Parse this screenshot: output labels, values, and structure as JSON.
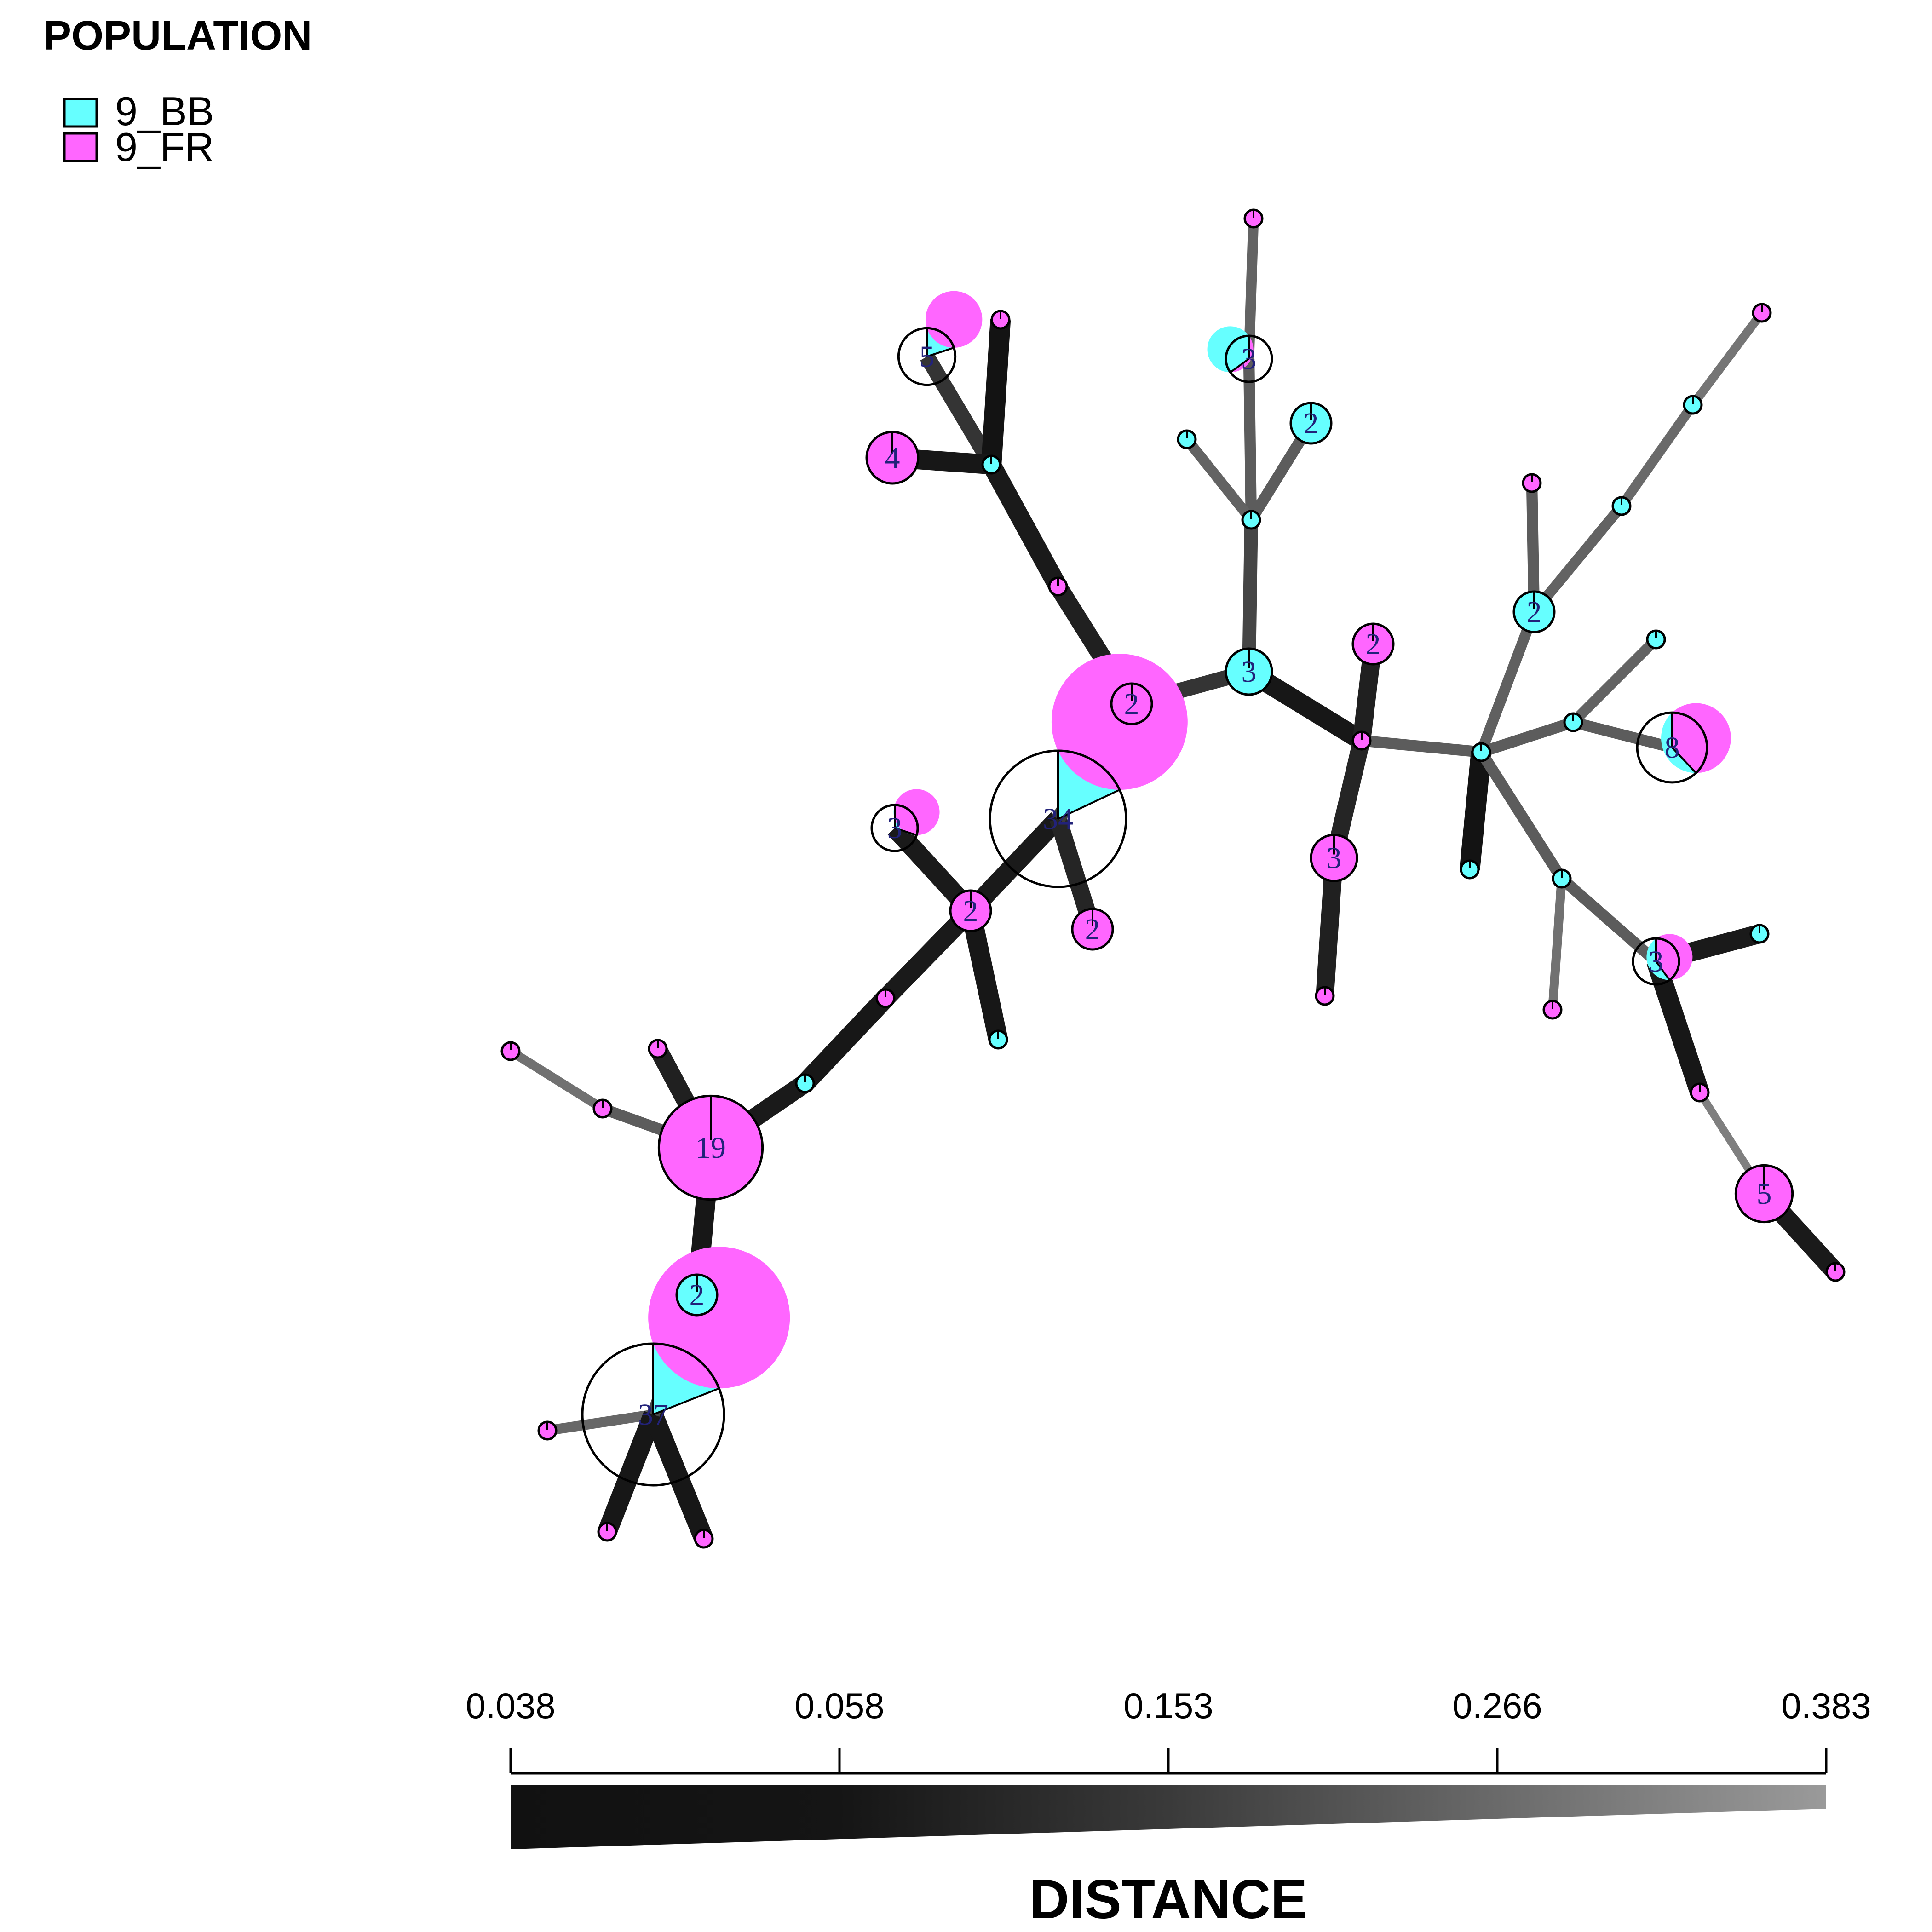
{
  "legend": {
    "title": "POPULATION",
    "items": [
      {
        "label": "9_BB",
        "color": "#66FFFF"
      },
      {
        "label": "9_FR",
        "color": "#FF66FF"
      }
    ]
  },
  "distance_scale": {
    "title": "DISTANCE",
    "ticks": [
      "0.038",
      "0.058",
      "0.153",
      "0.266",
      "0.383"
    ],
    "color_dark": "#111111",
    "color_light": "#9a9a9a"
  },
  "network": {
    "nodes": [
      {
        "id": "n34",
        "count": 34,
        "bb": 0.18
      },
      {
        "id": "n19",
        "count": 19,
        "bb": 0.0
      },
      {
        "id": "n37",
        "count": 37,
        "bb": 0.19
      },
      {
        "id": "n19b",
        "count": 2,
        "bb": 1.0
      },
      {
        "id": "nA",
        "count": 1,
        "bb": 0.0
      },
      {
        "id": "nB",
        "count": 1,
        "bb": 0.0
      },
      {
        "id": "nC",
        "count": 1,
        "bb": 0.0
      },
      {
        "id": "nD",
        "count": 1,
        "bb": 0.0
      },
      {
        "id": "nE",
        "count": 1,
        "bb": 0.0
      },
      {
        "id": "nF",
        "count": 1,
        "bb": 1.0
      },
      {
        "id": "nG",
        "count": 1,
        "bb": 0.0
      },
      {
        "id": "nH",
        "count": 2,
        "bb": 0.0
      },
      {
        "id": "nI",
        "count": 3,
        "bb": 0.3
      },
      {
        "id": "nJ",
        "count": 1,
        "bb": 1.0
      },
      {
        "id": "nK",
        "count": 2,
        "bb": 0.0
      },
      {
        "id": "nL",
        "count": 2,
        "bb": 0.0
      },
      {
        "id": "nM",
        "count": 1,
        "bb": 0.0
      },
      {
        "id": "nN",
        "count": 1,
        "bb": 1.0
      },
      {
        "id": "nO",
        "count": 5,
        "bb": 0.2
      },
      {
        "id": "nP",
        "count": 1,
        "bb": 0.0
      },
      {
        "id": "nQ",
        "count": 4,
        "bb": 0.0
      },
      {
        "id": "nR",
        "count": 3,
        "bb": 1.0
      },
      {
        "id": "nS",
        "count": 1,
        "bb": 1.0
      },
      {
        "id": "nT",
        "count": 3,
        "bb": 0.65
      },
      {
        "id": "nU",
        "count": 1,
        "bb": 0.0
      },
      {
        "id": "nV",
        "count": 1,
        "bb": 1.0
      },
      {
        "id": "nW",
        "count": 2,
        "bb": 1.0
      },
      {
        "id": "nX",
        "count": 1,
        "bb": 0.0
      },
      {
        "id": "nY",
        "count": 2,
        "bb": 0.0
      },
      {
        "id": "nZ",
        "count": 3,
        "bb": 0.0
      },
      {
        "id": "nAA",
        "count": 1,
        "bb": 0.0
      },
      {
        "id": "nAB",
        "count": 2,
        "bb": 0.0
      },
      {
        "id": "nAC",
        "count": 1,
        "bb": 1.0
      },
      {
        "id": "nAD",
        "count": 1,
        "bb": 1.0
      },
      {
        "id": "nAE",
        "count": 1,
        "bb": 0.0
      },
      {
        "id": "nAF",
        "count": 2,
        "bb": 1.0
      },
      {
        "id": "nAG",
        "count": 1,
        "bb": 1.0
      },
      {
        "id": "nAH",
        "count": 1,
        "bb": 1.0
      },
      {
        "id": "nAI",
        "count": 1,
        "bb": 0.0
      },
      {
        "id": "nAJ",
        "count": 1,
        "bb": 1.0
      },
      {
        "id": "nAK",
        "count": 1,
        "bb": 1.0
      },
      {
        "id": "nAL",
        "count": 8,
        "bb": 0.38
      },
      {
        "id": "nAM",
        "count": 1,
        "bb": 0.0
      },
      {
        "id": "nAN",
        "count": 1,
        "bb": 1.0
      },
      {
        "id": "nAO",
        "count": 3,
        "bb": 0.4
      },
      {
        "id": "nAP",
        "count": 1,
        "bb": 0.0
      },
      {
        "id": "nAQ",
        "count": 1,
        "bb": 1.0
      },
      {
        "id": "nAR",
        "count": 1,
        "bb": 0.0
      },
      {
        "id": "nAS",
        "count": 5,
        "bb": 0.0
      }
    ],
    "edges": [
      {
        "from": "n37",
        "to": "nA",
        "distance": 0.23
      },
      {
        "from": "n37",
        "to": "nB",
        "distance": 0.045
      },
      {
        "from": "n37",
        "to": "nC",
        "distance": 0.045
      },
      {
        "from": "n37",
        "to": "n19b",
        "distance": 0.15
      },
      {
        "from": "n19b",
        "to": "n19",
        "distance": 0.045
      },
      {
        "from": "n19",
        "to": "nD",
        "distance": 0.06
      },
      {
        "from": "n19",
        "to": "nE",
        "distance": 0.2
      },
      {
        "from": "nE",
        "to": "nG",
        "distance": 0.26
      },
      {
        "from": "n19",
        "to": "nF",
        "distance": 0.05
      },
      {
        "from": "nF",
        "to": "nX",
        "distance": 0.045
      },
      {
        "from": "nX",
        "to": "nK",
        "distance": 0.05
      },
      {
        "from": "nK",
        "to": "nI",
        "distance": 0.05
      },
      {
        "from": "nK",
        "to": "nJ",
        "distance": 0.045
      },
      {
        "from": "nK",
        "to": "n34",
        "distance": 0.05
      },
      {
        "from": "n34",
        "to": "nL",
        "distance": 0.07
      },
      {
        "from": "n34",
        "to": "nY",
        "distance": 0.12
      },
      {
        "from": "nY",
        "to": "nM",
        "distance": 0.06
      },
      {
        "from": "nM",
        "to": "nN",
        "distance": 0.05
      },
      {
        "from": "nN",
        "to": "nO",
        "distance": 0.1
      },
      {
        "from": "nN",
        "to": "nP",
        "distance": 0.04
      },
      {
        "from": "nN",
        "to": "nQ",
        "distance": 0.045
      },
      {
        "from": "nY",
        "to": "nR",
        "distance": 0.1
      },
      {
        "from": "nR",
        "to": "nS",
        "distance": 0.14
      },
      {
        "from": "nS",
        "to": "nT",
        "distance": 0.2
      },
      {
        "from": "nT",
        "to": "nU",
        "distance": 0.22
      },
      {
        "from": "nS",
        "to": "nV",
        "distance": 0.22
      },
      {
        "from": "nS",
        "to": "nW",
        "distance": 0.2
      },
      {
        "from": "nR",
        "to": "nAA",
        "distance": 0.045
      },
      {
        "from": "nAA",
        "to": "nAB",
        "distance": 0.06
      },
      {
        "from": "nAA",
        "to": "nZ",
        "distance": 0.07
      },
      {
        "from": "nZ",
        "to": "nAE",
        "distance": 0.06
      },
      {
        "from": "nAA",
        "to": "nAC",
        "distance": 0.2
      },
      {
        "from": "nAC",
        "to": "nAD",
        "distance": 0.04
      },
      {
        "from": "nAC",
        "to": "nAF",
        "distance": 0.21
      },
      {
        "from": "nAF",
        "to": "nAI",
        "distance": 0.2
      },
      {
        "from": "nAF",
        "to": "nAG",
        "distance": 0.22
      },
      {
        "from": "nAG",
        "to": "nAH",
        "distance": 0.24
      },
      {
        "from": "nAH",
        "to": "nAM",
        "distance": 0.27
      },
      {
        "from": "nAC",
        "to": "nAJ",
        "distance": 0.2
      },
      {
        "from": "nAJ",
        "to": "nAK",
        "distance": 0.22
      },
      {
        "from": "nAJ",
        "to": "nAL",
        "distance": 0.2
      },
      {
        "from": "nAC",
        "to": "nAN",
        "distance": 0.2
      },
      {
        "from": "nAN",
        "to": "nAO",
        "distance": 0.2
      },
      {
        "from": "nAN",
        "to": "nAP",
        "distance": 0.26
      },
      {
        "from": "nAO",
        "to": "nAQ",
        "distance": 0.05
      },
      {
        "from": "nAO",
        "to": "nAR",
        "distance": 0.045
      },
      {
        "from": "nAR",
        "to": "nAS",
        "distance": 0.3
      },
      {
        "from": "nAS",
        "to": "nAT",
        "distance": 0.05
      }
    ]
  }
}
